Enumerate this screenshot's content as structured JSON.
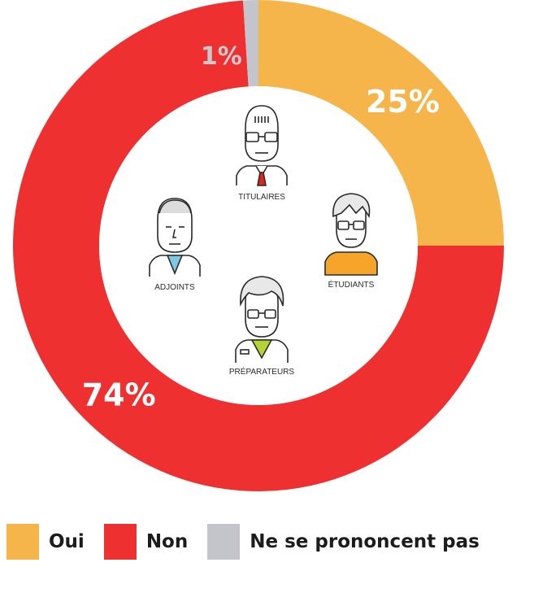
{
  "chart_data": {
    "type": "pie",
    "style": "donut",
    "categories": [
      "Oui",
      "Non",
      "Ne se prononcent pas"
    ],
    "values": [
      25,
      74,
      1
    ],
    "value_labels": [
      "25%",
      "74%",
      "1%"
    ],
    "colors": [
      "#f5b54a",
      "#ee3130",
      "#c4c5ca"
    ]
  },
  "legend": {
    "items": [
      {
        "label": "Oui",
        "color": "#f5b54a"
      },
      {
        "label": "Non",
        "color": "#ee3130"
      },
      {
        "label": "Ne se prononcent pas",
        "color": "#c4c5ca"
      }
    ]
  },
  "center": {
    "personas": [
      {
        "label": "TITULAIRES",
        "icon": "titulaire-pharmacist-icon",
        "accent": "#e2231a"
      },
      {
        "label": "ADJOINTS",
        "icon": "adjoint-pharmacist-icon",
        "accent": "#7ec8e3"
      },
      {
        "label": "ÉTUDIANTS",
        "icon": "student-icon",
        "accent": "#f5a52a"
      },
      {
        "label": "PRÉPARATEURS",
        "icon": "preparateur-icon",
        "accent": "#b5d334"
      }
    ]
  }
}
